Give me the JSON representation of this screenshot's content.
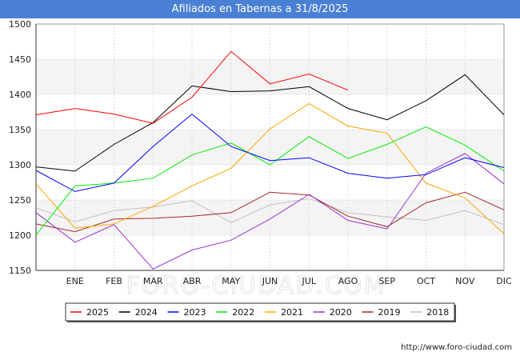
{
  "title": "Afiliados en Tabernas a 31/8/2025",
  "watermark": "FORO-CIUDAD.COM",
  "footer_url": "http://www.foro-ciudad.com",
  "chart_data": {
    "type": "line",
    "title": "Afiliados en Tabernas a 31/8/2025",
    "x": [
      "",
      "ENE",
      "FEB",
      "MAR",
      "ABR",
      "MAY",
      "JUN",
      "JUL",
      "AGO",
      "SEP",
      "OCT",
      "NOV",
      "DIC"
    ],
    "ylim": [
      1150,
      1500
    ],
    "yticks": [
      1150,
      1200,
      1250,
      1300,
      1350,
      1400,
      1450,
      1500
    ],
    "grid": true,
    "legend_position": "bottom",
    "series": [
      {
        "name": "2025",
        "color": "#ff0000",
        "values": [
          1371,
          1380,
          1372,
          1359,
          1396,
          1461,
          1415,
          1429,
          1406,
          null,
          null,
          null,
          null
        ]
      },
      {
        "name": "2024",
        "color": "#000000",
        "values": [
          1297,
          1291,
          1329,
          1360,
          1412,
          1404,
          1405,
          1411,
          1380,
          1364,
          1391,
          1428,
          1371
        ]
      },
      {
        "name": "2023",
        "color": "#0000ff",
        "values": [
          1292,
          1262,
          1274,
          1326,
          1372,
          1326,
          1306,
          1310,
          1288,
          1281,
          1286,
          1310,
          1296
        ]
      },
      {
        "name": "2022",
        "color": "#00ee00",
        "values": [
          1200,
          1270,
          1274,
          1281,
          1314,
          1331,
          1300,
          1340,
          1309,
          1329,
          1354,
          1328,
          1291
        ]
      },
      {
        "name": "2021",
        "color": "#ffa500",
        "values": [
          1273,
          1210,
          1216,
          1241,
          1270,
          1295,
          1351,
          1387,
          1355,
          1345,
          1274,
          1253,
          1202
        ]
      },
      {
        "name": "2020",
        "color": "#9932cc",
        "values": [
          1232,
          1190,
          1215,
          1152,
          1179,
          1193,
          1223,
          1258,
          1221,
          1209,
          1288,
          1316,
          1273
        ]
      },
      {
        "name": "2019",
        "color": "#a52a2a",
        "values": [
          1216,
          1205,
          1223,
          1224,
          1227,
          1232,
          1261,
          1257,
          1227,
          1212,
          1246,
          1261,
          1236
        ]
      },
      {
        "name": "2018",
        "color": "#c0c0c0",
        "values": [
          1239,
          1219,
          1235,
          1240,
          1249,
          1218,
          1243,
          1252,
          1232,
          1226,
          1221,
          1235,
          1215
        ]
      }
    ]
  }
}
